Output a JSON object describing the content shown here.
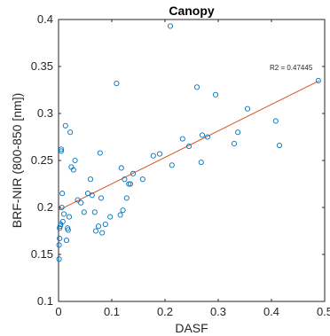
{
  "chart_data": {
    "type": "scatter",
    "title": "Canopy",
    "xlabel": "DASF",
    "ylabel": "BRF-NIR (800-850 [nm])",
    "xlim": [
      0,
      0.5
    ],
    "ylim": [
      0.1,
      0.4
    ],
    "xticks": [
      "0",
      "0.1",
      "0.2",
      "0.3",
      "0.4",
      "0.5"
    ],
    "yticks": [
      "0.1",
      "0.15",
      "0.2",
      "0.25",
      "0.3",
      "0.35",
      "0.4"
    ],
    "grid": false,
    "annotation": "R2 = 0.47445",
    "colors": {
      "points": "#0072BD",
      "fit": "#D95319",
      "axes": "#262626"
    },
    "fit_line": {
      "x": [
        0,
        0.49
      ],
      "y": [
        0.197,
        0.335
      ]
    },
    "points": {
      "x": [
        0.001,
        0.001,
        0.002,
        0.002,
        0.003,
        0.004,
        0.005,
        0.005,
        0.006,
        0.007,
        0.008,
        0.01,
        0.013,
        0.015,
        0.017,
        0.018,
        0.02,
        0.022,
        0.024,
        0.028,
        0.031,
        0.036,
        0.042,
        0.048,
        0.055,
        0.06,
        0.063,
        0.068,
        0.07,
        0.075,
        0.078,
        0.08,
        0.082,
        0.088,
        0.097,
        0.109,
        0.116,
        0.118,
        0.121,
        0.124,
        0.128,
        0.132,
        0.135,
        0.14,
        0.158,
        0.178,
        0.19,
        0.21,
        0.213,
        0.233,
        0.245,
        0.26,
        0.268,
        0.27,
        0.28,
        0.295,
        0.33,
        0.337,
        0.355,
        0.408,
        0.415,
        0.488
      ],
      "y": [
        0.145,
        0.16,
        0.167,
        0.178,
        0.18,
        0.182,
        0.26,
        0.262,
        0.2,
        0.215,
        0.185,
        0.193,
        0.287,
        0.165,
        0.178,
        0.176,
        0.19,
        0.28,
        0.243,
        0.24,
        0.25,
        0.208,
        0.205,
        0.195,
        0.215,
        0.23,
        0.213,
        0.195,
        0.175,
        0.18,
        0.258,
        0.21,
        0.173,
        0.182,
        0.19,
        0.332,
        0.192,
        0.242,
        0.197,
        0.23,
        0.21,
        0.225,
        0.225,
        0.236,
        0.23,
        0.255,
        0.257,
        0.393,
        0.245,
        0.273,
        0.265,
        0.328,
        0.248,
        0.277,
        0.275,
        0.32,
        0.268,
        0.28,
        0.305,
        0.292,
        0.266,
        0.335
      ]
    }
  }
}
